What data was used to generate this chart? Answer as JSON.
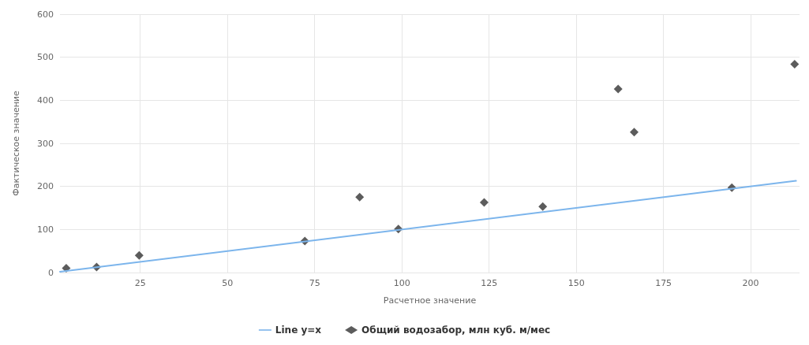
{
  "chart_data": {
    "type": "scatter",
    "xlabel": "Расчетное значение",
    "ylabel": "Фактическое значение",
    "xlim": [
      2,
      214
    ],
    "xticks": [
      25,
      50,
      75,
      100,
      125,
      150,
      175,
      200
    ],
    "ylim": [
      0,
      600
    ],
    "yticks": [
      0,
      100,
      200,
      300,
      400,
      500,
      600
    ],
    "grid": true,
    "legend": "bottom",
    "series": [
      {
        "name": "Line y=x",
        "type": "line",
        "color": "#7cb5ec",
        "marker": "none",
        "x": [
          2,
          213
        ],
        "values": [
          2,
          213
        ]
      },
      {
        "name": "Общий водозабор, млн куб. м/мес",
        "color": "#333333",
        "marker": "diamond",
        "x": [
          3.8,
          12.5,
          24.7,
          72.2,
          87.9,
          99,
          123.6,
          140.4,
          162,
          166.6,
          194.6,
          212.6
        ],
        "values": [
          10,
          13,
          40,
          73,
          175,
          101,
          163,
          153,
          426,
          326,
          197,
          484
        ]
      }
    ]
  }
}
